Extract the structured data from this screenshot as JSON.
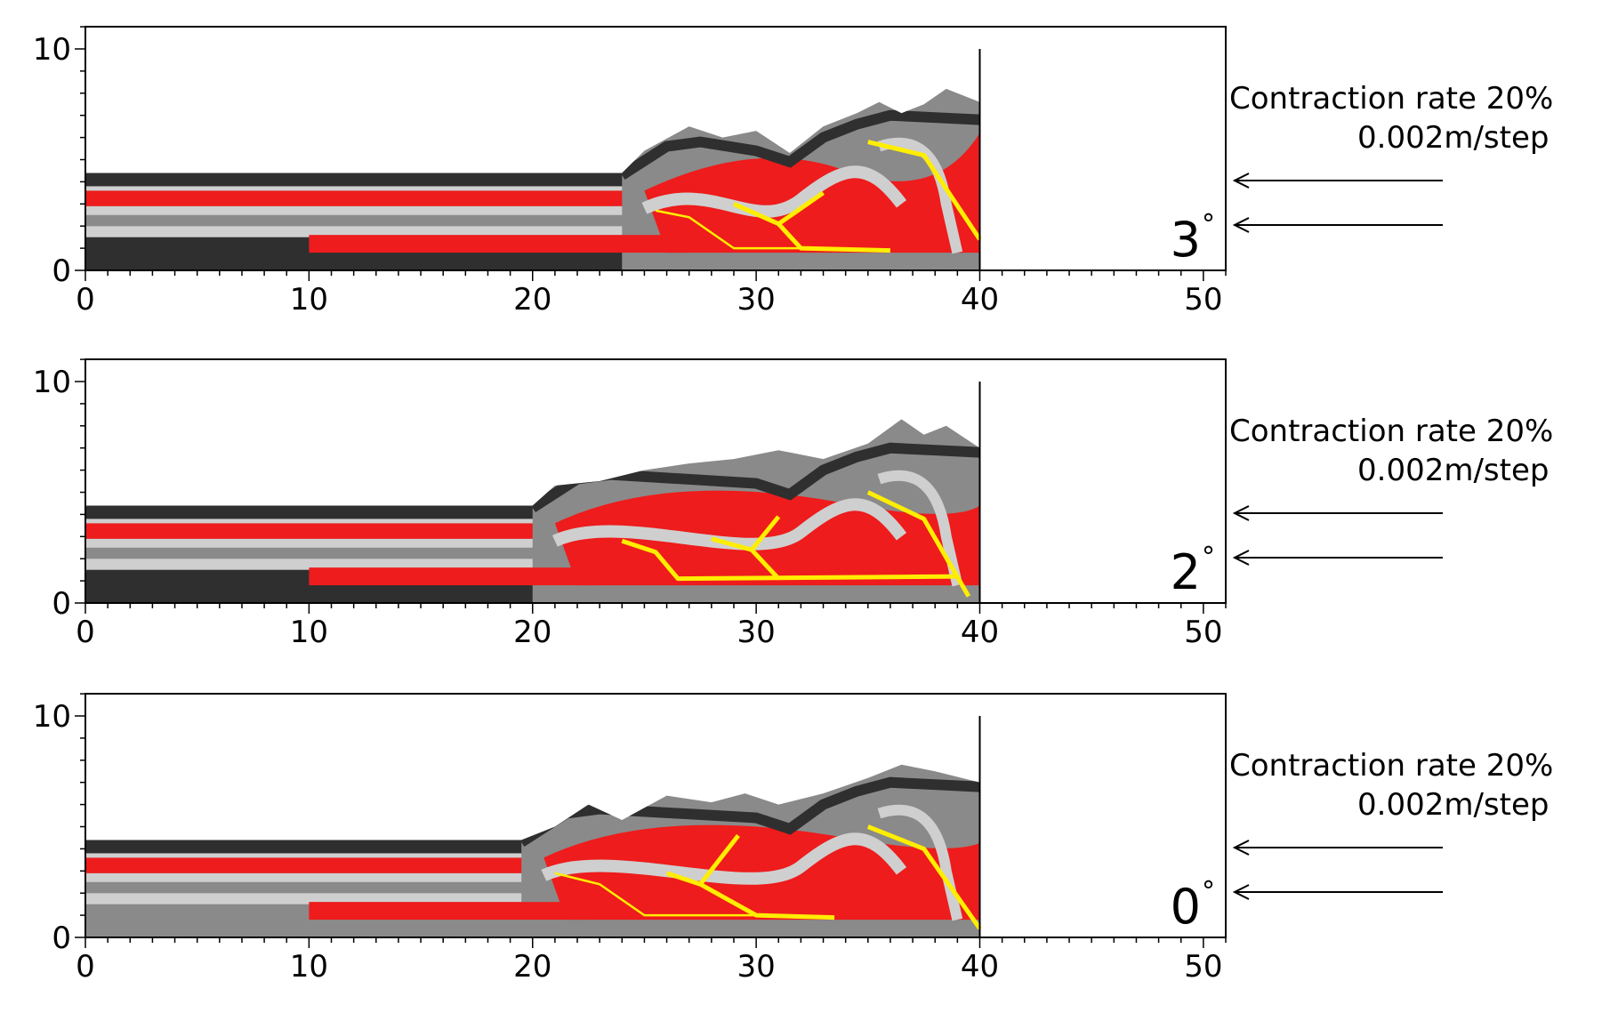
{
  "panels": [
    {
      "id": "panel-3deg",
      "angle": "3",
      "degree_symbol": "°",
      "rate_line1": "Contraction rate 20%",
      "rate_line2": "0.002m/step",
      "x_ticks": [
        "0",
        "10",
        "20",
        "30",
        "40",
        "50"
      ],
      "y_ticks": [
        "0",
        "10"
      ],
      "surface": [
        [
          0,
          4.4
        ],
        [
          24,
          4.4
        ],
        [
          25,
          5.4
        ],
        [
          27,
          6.5
        ],
        [
          28.5,
          6.0
        ],
        [
          30,
          6.3
        ],
        [
          31.5,
          5.3
        ],
        [
          33,
          6.5
        ],
        [
          34.5,
          7.1
        ],
        [
          35.5,
          7.6
        ],
        [
          36.5,
          7.1
        ],
        [
          37.5,
          7.5
        ],
        [
          38.5,
          8.2
        ],
        [
          40,
          7.6
        ]
      ],
      "faults": [
        {
          "w": "thin",
          "pts": [
            [
              25.5,
              2.7
            ],
            [
              27,
              2.4
            ],
            [
              29,
              1.0
            ],
            [
              32,
              1.0
            ]
          ]
        },
        {
          "w": "thick",
          "pts": [
            [
              29,
              3.0
            ],
            [
              31,
              2.1
            ],
            [
              32,
              1.0
            ],
            [
              36,
              0.9
            ]
          ]
        },
        {
          "w": "thick",
          "pts": [
            [
              31,
              2.1
            ],
            [
              33,
              3.5
            ]
          ]
        },
        {
          "w": "thick",
          "pts": [
            [
              35,
              5.8
            ],
            [
              37.5,
              5.2
            ],
            [
              40,
              1.4
            ]
          ]
        }
      ]
    },
    {
      "id": "panel-2deg",
      "angle": "2",
      "degree_symbol": "°",
      "rate_line1": "Contraction rate 20%",
      "rate_line2": "0.002m/step",
      "x_ticks": [
        "0",
        "10",
        "20",
        "30",
        "40",
        "50"
      ],
      "y_ticks": [
        "0",
        "10"
      ],
      "surface": [
        [
          0,
          4.4
        ],
        [
          20,
          4.4
        ],
        [
          21,
          5.3
        ],
        [
          23,
          5.5
        ],
        [
          25,
          6.0
        ],
        [
          27,
          6.3
        ],
        [
          29,
          6.5
        ],
        [
          31,
          6.9
        ],
        [
          33,
          6.5
        ],
        [
          35,
          7.2
        ],
        [
          36.5,
          8.3
        ],
        [
          37.5,
          7.6
        ],
        [
          38.5,
          8.0
        ],
        [
          40,
          7.0
        ]
      ],
      "faults": [
        {
          "w": "thick",
          "pts": [
            [
              24,
              2.8
            ],
            [
              25.5,
              2.3
            ],
            [
              26.5,
              1.1
            ],
            [
              39,
              1.2
            ]
          ]
        },
        {
          "w": "thick",
          "pts": [
            [
              28,
              2.9
            ],
            [
              29.8,
              2.4
            ],
            [
              31,
              1.1
            ]
          ]
        },
        {
          "w": "thick",
          "pts": [
            [
              29.8,
              2.4
            ],
            [
              31,
              3.9
            ]
          ]
        },
        {
          "w": "thick",
          "pts": [
            [
              35,
              5.0
            ],
            [
              37.5,
              3.8
            ],
            [
              39.5,
              0.3
            ]
          ]
        }
      ]
    },
    {
      "id": "panel-0deg",
      "angle": "0",
      "degree_symbol": "°",
      "rate_line1": "Contraction rate 20%",
      "rate_line2": "0.002m/step",
      "x_ticks": [
        "0",
        "10",
        "20",
        "30",
        "40",
        "50"
      ],
      "y_ticks": [
        "0",
        "10"
      ],
      "surface": [
        [
          0,
          4.4
        ],
        [
          19.5,
          4.4
        ],
        [
          21,
          5.0
        ],
        [
          22.5,
          6.0
        ],
        [
          24,
          5.3
        ],
        [
          26,
          6.4
        ],
        [
          28,
          6.1
        ],
        [
          29.5,
          6.5
        ],
        [
          31,
          6.0
        ],
        [
          33,
          6.5
        ],
        [
          35,
          7.2
        ],
        [
          36.5,
          7.8
        ],
        [
          38,
          7.5
        ],
        [
          40,
          7.0
        ]
      ],
      "faults": [
        {
          "w": "thin",
          "pts": [
            [
              21,
              2.9
            ],
            [
              23,
              2.4
            ],
            [
              25,
              1.0
            ],
            [
              30,
              1.0
            ]
          ]
        },
        {
          "w": "thick",
          "pts": [
            [
              26,
              2.9
            ],
            [
              27.5,
              2.4
            ],
            [
              30,
              1.0
            ],
            [
              33.5,
              0.9
            ]
          ]
        },
        {
          "w": "thick",
          "pts": [
            [
              27.5,
              2.4
            ],
            [
              29.2,
              4.6
            ]
          ]
        },
        {
          "w": "thick",
          "pts": [
            [
              35,
              5.0
            ],
            [
              37.5,
              4.0
            ],
            [
              40,
              0.4
            ]
          ]
        }
      ]
    }
  ],
  "colors": {
    "layer_dark": "#2f2f2f",
    "layer_mid": "#8a8a8a",
    "layer_light": "#cfcfcf",
    "layer_red": "#ee1c1c",
    "fault": "#ffee00",
    "axis": "#000000"
  }
}
